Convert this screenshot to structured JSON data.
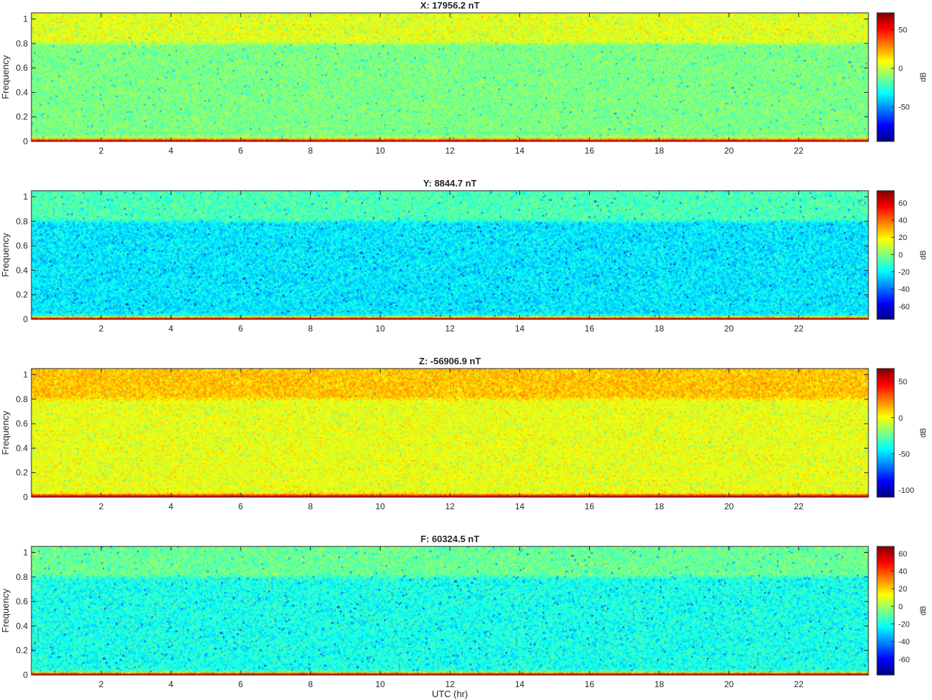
{
  "chart_data": [
    {
      "type": "heatmap",
      "title": "X: 17956.2 nT",
      "xlabel": "",
      "ylabel": "Frequency",
      "xlim": [
        0,
        24
      ],
      "ylim": [
        0,
        1.05
      ],
      "x_ticks": [
        2,
        4,
        6,
        8,
        10,
        12,
        14,
        16,
        18,
        20,
        22
      ],
      "y_ticks": [
        0,
        0.2,
        0.4,
        0.6,
        0.8,
        1
      ],
      "colorbar": {
        "label": "dB",
        "range": [
          -95,
          72
        ],
        "ticks": [
          -50,
          0,
          50
        ]
      },
      "profile": {
        "base_dB": -12,
        "high_band_dB": 5,
        "spread_dB": 12,
        "low_freq_dB": 55
      }
    },
    {
      "type": "heatmap",
      "title": "Y: 8844.7 nT",
      "xlabel": "",
      "ylabel": "Frequency",
      "xlim": [
        0,
        24
      ],
      "ylim": [
        0,
        1.05
      ],
      "x_ticks": [
        2,
        4,
        6,
        8,
        10,
        12,
        14,
        16,
        18,
        20,
        22
      ],
      "y_ticks": [
        0,
        0.2,
        0.4,
        0.6,
        0.8,
        1
      ],
      "colorbar": {
        "label": "dB",
        "range": [
          -75,
          74
        ],
        "ticks": [
          -60,
          -40,
          -20,
          0,
          20,
          40,
          60
        ]
      },
      "profile": {
        "base_dB": -22,
        "high_band_dB": -8,
        "spread_dB": 12,
        "low_freq_dB": 60
      }
    },
    {
      "type": "heatmap",
      "title": "Z: -56906.9 nT",
      "xlabel": "",
      "ylabel": "Frequency",
      "xlim": [
        0,
        24
      ],
      "ylim": [
        0,
        1.05
      ],
      "x_ticks": [
        2,
        4,
        6,
        8,
        10,
        12,
        14,
        16,
        18,
        20,
        22
      ],
      "y_ticks": [
        0,
        0.2,
        0.4,
        0.6,
        0.8,
        1
      ],
      "colorbar": {
        "label": "dB",
        "range": [
          -110,
          68
        ],
        "ticks": [
          -100,
          -50,
          0,
          50
        ]
      },
      "profile": {
        "base_dB": -2,
        "high_band_dB": 12,
        "spread_dB": 12,
        "low_freq_dB": 55
      }
    },
    {
      "type": "heatmap",
      "title": "F: 60324.5 nT",
      "xlabel": "UTC (hr)",
      "ylabel": "Frequency",
      "xlim": [
        0,
        24
      ],
      "ylim": [
        0,
        1.05
      ],
      "x_ticks": [
        2,
        4,
        6,
        8,
        10,
        12,
        14,
        16,
        18,
        20,
        22
      ],
      "y_ticks": [
        0,
        0.2,
        0.4,
        0.6,
        0.8,
        1
      ],
      "colorbar": {
        "label": "dB",
        "range": [
          -78,
          68
        ],
        "ticks": [
          -60,
          -40,
          -20,
          0,
          20,
          40,
          60
        ]
      },
      "profile": {
        "base_dB": -20,
        "high_band_dB": -8,
        "spread_dB": 12,
        "low_freq_dB": 58
      }
    }
  ]
}
